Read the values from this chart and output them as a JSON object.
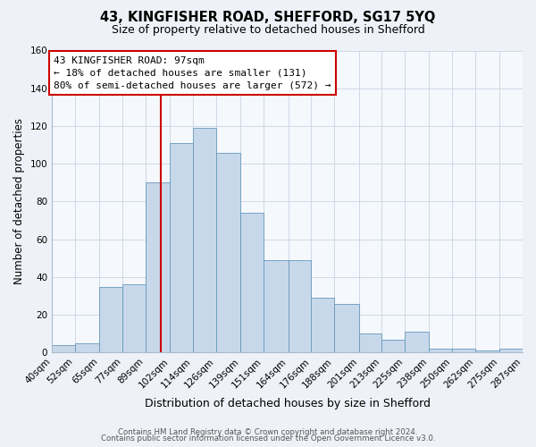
{
  "title1": "43, KINGFISHER ROAD, SHEFFORD, SG17 5YQ",
  "title2": "Size of property relative to detached houses in Shefford",
  "xlabel": "Distribution of detached houses by size in Shefford",
  "ylabel": "Number of detached properties",
  "bin_edges": [
    40,
    52,
    65,
    77,
    89,
    102,
    114,
    126,
    139,
    151,
    164,
    176,
    188,
    201,
    213,
    225,
    238,
    250,
    262,
    275,
    287
  ],
  "bin_labels": [
    "40sqm",
    "52sqm",
    "65sqm",
    "77sqm",
    "89sqm",
    "102sqm",
    "114sqm",
    "126sqm",
    "139sqm",
    "151sqm",
    "164sqm",
    "176sqm",
    "188sqm",
    "201sqm",
    "213sqm",
    "225sqm",
    "238sqm",
    "250sqm",
    "262sqm",
    "275sqm",
    "287sqm"
  ],
  "bar_heights": [
    4,
    5,
    35,
    36,
    90,
    111,
    119,
    106,
    74,
    49,
    49,
    29,
    26,
    10,
    7,
    11,
    2,
    2,
    1,
    2
  ],
  "bar_facecolor": "#c8d8eb",
  "bar_edgecolor": "#6699bb",
  "ylim": [
    0,
    160
  ],
  "yticks": [
    0,
    20,
    40,
    60,
    80,
    100,
    120,
    140,
    160
  ],
  "vline_x": 97,
  "vline_color": "#cc0000",
  "annotation_text": "43 KINGFISHER ROAD: 97sqm\n← 18% of detached houses are smaller (131)\n80% of semi-detached houses are larger (572) →",
  "annotation_box_color": "#ffffff",
  "annotation_box_edgecolor": "#cc0000",
  "footer1": "Contains HM Land Registry data © Crown copyright and database right 2024.",
  "footer2": "Contains public sector information licensed under the Open Government Licence v3.0.",
  "bg_color": "#eef2f8",
  "plot_bg_color": "#f5f8fc",
  "grid_color": "#c8d4e4",
  "title1_fontsize": 10.5,
  "title2_fontsize": 9,
  "ylabel_fontsize": 8.5,
  "xlabel_fontsize": 9,
  "tick_fontsize": 7.5,
  "footer_fontsize": 6.2
}
